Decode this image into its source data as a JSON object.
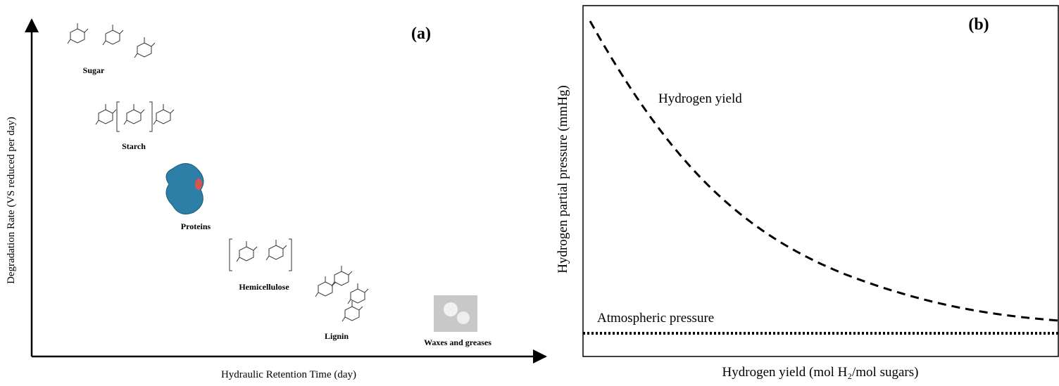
{
  "panel_a": {
    "label": "(a)",
    "x_axis_label": "Hydraulic Retention Time (day)",
    "y_axis_label": "Degradation  Rate (VS reduced per day)",
    "compounds": [
      "Sugar",
      "Starch",
      "Proteins",
      "Hemicellulose",
      "Lignin",
      "Waxes and greases"
    ]
  },
  "panel_b": {
    "label": "(b)",
    "x_axis_label": "Hydrogen  yield  (mol H₂/mol sugars)",
    "y_axis_label": "Hydrogen  partial  pressure  (mmHg)",
    "curve_label": "Hydrogen  yield",
    "baseline_label": "Atmospheric  pressure"
  }
}
